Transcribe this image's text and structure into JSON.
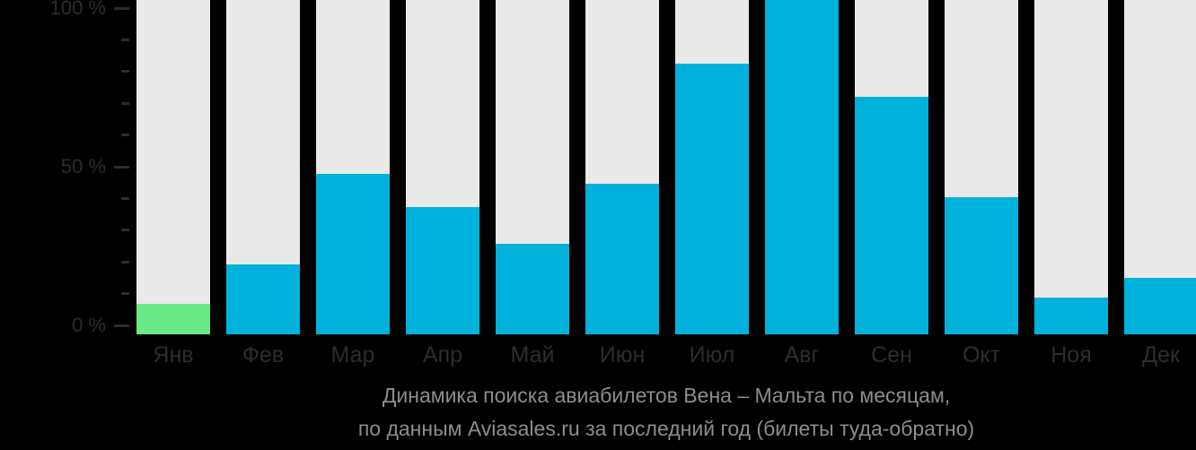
{
  "chart_data": {
    "type": "bar",
    "title": "Динамика поиска авиабилетов Вена – Мальта по месяцам,",
    "subtitle": "по данным Aviasales.ru за последний год (билеты туда-обратно)",
    "unit": "%",
    "categories": [
      "Янв",
      "Фев",
      "Мар",
      "Апр",
      "Май",
      "Июн",
      "Июл",
      "Авг",
      "Сен",
      "Окт",
      "Ноя",
      "Дек"
    ],
    "values": [
      9,
      21,
      48,
      38,
      27,
      45,
      81,
      100,
      71,
      41,
      11,
      17
    ],
    "highlight_index": 0,
    "ylim": [
      0,
      100
    ],
    "ytick_minor_step": 10,
    "yticks_labeled": [
      0,
      50,
      100
    ],
    "ytick_labels": [
      "0 %",
      "50 %",
      "100 %"
    ],
    "legend": "none",
    "grid": "off",
    "colors": {
      "background": "#000000",
      "bar": "#00b1dc",
      "bar_highlight": "#69e987",
      "bar_track": "#e9e9e9",
      "axis_text": "#2d2d2d",
      "caption_text": "#8d8d8d"
    }
  }
}
